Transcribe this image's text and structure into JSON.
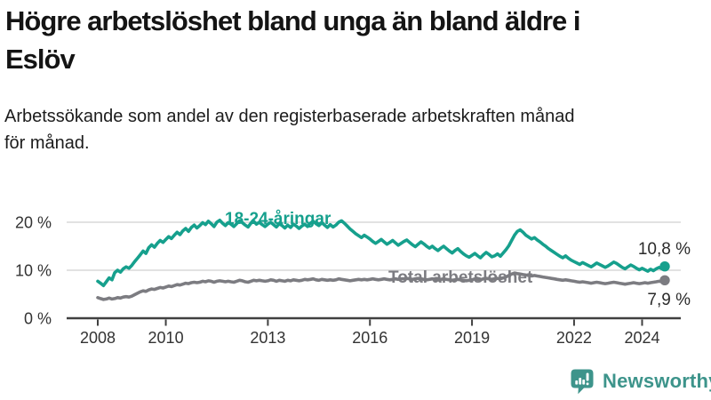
{
  "header": {
    "title": "Högre arbetslöshet bland unga än bland äldre i\nEslöv",
    "subtitle": "Arbetssökande som andel av den registerbaserade arbetskraften månad\nför månad."
  },
  "footer": {
    "brand": "Newsworthy",
    "logo_icon": "bar-chart-speech-bubble-icon",
    "brand_color": "#3d948b"
  },
  "chart_data": {
    "type": "line",
    "title": "",
    "xlabel": "",
    "ylabel": "",
    "x_unit": "month",
    "x_range": "2008-01 to 2024-09",
    "x_tick_years": [
      2008,
      2010,
      2013,
      2016,
      2019,
      2022,
      2024
    ],
    "y_ticks": [
      0,
      10,
      20
    ],
    "y_tick_suffix": " %",
    "ylim": [
      0,
      22
    ],
    "grid": "horizontal",
    "grid_color": "#d9d9d9",
    "axis_color": "#404040",
    "tick_color": "#333333",
    "value_label_color": "#2b2b2b",
    "legend_position": "inline-labels",
    "series": [
      {
        "id": "youth",
        "name": "18-24-åringar",
        "color": "#16a08d",
        "end_value": 10.8,
        "end_label": "10,8 %",
        "values": [
          7.7,
          7.3,
          6.8,
          7.6,
          8.4,
          8.0,
          9.5,
          10.0,
          9.6,
          10.3,
          10.7,
          10.4,
          11.0,
          11.8,
          12.5,
          13.2,
          14.0,
          13.5,
          14.7,
          15.3,
          14.8,
          15.6,
          16.2,
          15.8,
          16.4,
          17.0,
          16.6,
          17.3,
          17.9,
          17.4,
          18.2,
          18.7,
          18.1,
          18.9,
          19.4,
          18.8,
          19.3,
          19.9,
          19.5,
          20.2,
          19.7,
          19.1,
          20.0,
          20.4,
          19.8,
          19.3,
          19.9,
          19.6,
          19.1,
          19.7,
          20.3,
          19.9,
          19.4,
          19.0,
          19.8,
          20.2,
          19.6,
          20.0,
          19.5,
          19.1,
          19.6,
          20.0,
          19.5,
          19.0,
          19.7,
          19.3,
          18.8,
          19.4,
          18.9,
          19.6,
          19.2,
          18.7,
          19.2,
          19.6,
          19.1,
          19.8,
          20.2,
          19.7,
          19.3,
          19.9,
          19.4,
          18.9,
          19.5,
          19.0,
          19.4,
          20.0,
          20.3,
          19.8,
          19.2,
          18.6,
          18.1,
          17.6,
          17.2,
          16.8,
          17.3,
          16.9,
          16.5,
          16.0,
          15.6,
          16.0,
          16.4,
          15.9,
          15.4,
          15.8,
          16.2,
          15.7,
          15.2,
          15.6,
          16.0,
          16.3,
          15.8,
          15.3,
          14.9,
          15.4,
          15.9,
          15.5,
          15.0,
          14.6,
          15.0,
          14.5,
          14.1,
          14.6,
          15.0,
          14.5,
          14.0,
          13.6,
          14.1,
          14.5,
          13.9,
          13.4,
          13.0,
          12.7,
          13.1,
          13.5,
          13.0,
          12.6,
          13.2,
          13.7,
          13.3,
          12.8,
          13.0,
          13.4,
          12.9,
          13.6,
          14.3,
          15.1,
          16.2,
          17.3,
          18.1,
          18.4,
          17.9,
          17.3,
          16.9,
          16.5,
          16.8,
          16.3,
          15.9,
          15.4,
          15.0,
          14.5,
          14.1,
          13.7,
          13.3,
          12.9,
          12.6,
          13.0,
          12.5,
          12.1,
          11.8,
          11.5,
          11.2,
          11.6,
          11.3,
          11.0,
          10.7,
          11.1,
          11.5,
          11.2,
          10.9,
          10.6,
          10.9,
          11.3,
          11.7,
          11.4,
          11.0,
          10.6,
          10.3,
          10.7,
          11.1,
          10.8,
          10.4,
          10.1,
          10.4,
          10.1,
          9.8,
          10.2,
          9.9,
          10.3,
          10.6,
          10.3,
          10.8
        ]
      },
      {
        "id": "total",
        "name": "Total arbetslöshet",
        "color": "#7c7c81",
        "end_value": 7.9,
        "end_label": "7,9 %",
        "values": [
          4.3,
          4.1,
          3.9,
          4.0,
          4.2,
          4.0,
          4.1,
          4.3,
          4.2,
          4.4,
          4.5,
          4.4,
          4.6,
          4.9,
          5.2,
          5.5,
          5.7,
          5.6,
          5.9,
          6.1,
          6.0,
          6.2,
          6.4,
          6.3,
          6.5,
          6.7,
          6.6,
          6.8,
          7.0,
          6.9,
          7.1,
          7.3,
          7.2,
          7.4,
          7.5,
          7.4,
          7.5,
          7.7,
          7.6,
          7.8,
          7.7,
          7.5,
          7.7,
          7.8,
          7.7,
          7.6,
          7.7,
          7.6,
          7.5,
          7.7,
          7.9,
          7.8,
          7.6,
          7.5,
          7.7,
          7.9,
          7.8,
          7.9,
          7.8,
          7.7,
          7.8,
          8.0,
          7.9,
          7.7,
          7.9,
          7.8,
          7.7,
          7.9,
          7.8,
          8.0,
          7.9,
          7.8,
          7.9,
          8.1,
          8.0,
          8.1,
          8.2,
          8.0,
          7.9,
          8.1,
          8.0,
          7.9,
          8.0,
          7.9,
          8.0,
          8.2,
          8.1,
          8.0,
          7.9,
          7.8,
          7.9,
          8.0,
          8.1,
          8.0,
          8.1,
          8.0,
          8.1,
          8.2,
          8.1,
          8.0,
          8.1,
          8.2,
          8.1,
          8.0,
          8.1,
          8.2,
          8.1,
          8.2,
          8.2,
          8.3,
          8.2,
          8.1,
          8.2,
          8.3,
          8.2,
          8.1,
          8.0,
          8.1,
          8.2,
          8.1,
          8.0,
          8.1,
          8.2,
          8.1,
          8.0,
          7.9,
          8.0,
          8.1,
          8.0,
          7.9,
          7.8,
          7.9,
          8.0,
          8.2,
          8.1,
          8.0,
          8.2,
          8.3,
          8.2,
          8.1,
          8.2,
          8.3,
          8.2,
          8.4,
          8.6,
          8.9,
          9.2,
          9.4,
          9.3,
          9.2,
          9.1,
          9.0,
          8.9,
          8.8,
          8.9,
          8.8,
          8.7,
          8.6,
          8.5,
          8.4,
          8.3,
          8.2,
          8.1,
          8.0,
          7.9,
          8.0,
          7.9,
          7.8,
          7.7,
          7.6,
          7.5,
          7.6,
          7.5,
          7.4,
          7.3,
          7.4,
          7.5,
          7.4,
          7.3,
          7.2,
          7.3,
          7.4,
          7.5,
          7.4,
          7.3,
          7.2,
          7.1,
          7.2,
          7.3,
          7.4,
          7.3,
          7.2,
          7.3,
          7.4,
          7.3,
          7.4,
          7.5,
          7.6,
          7.7,
          7.6,
          7.9
        ]
      }
    ]
  }
}
